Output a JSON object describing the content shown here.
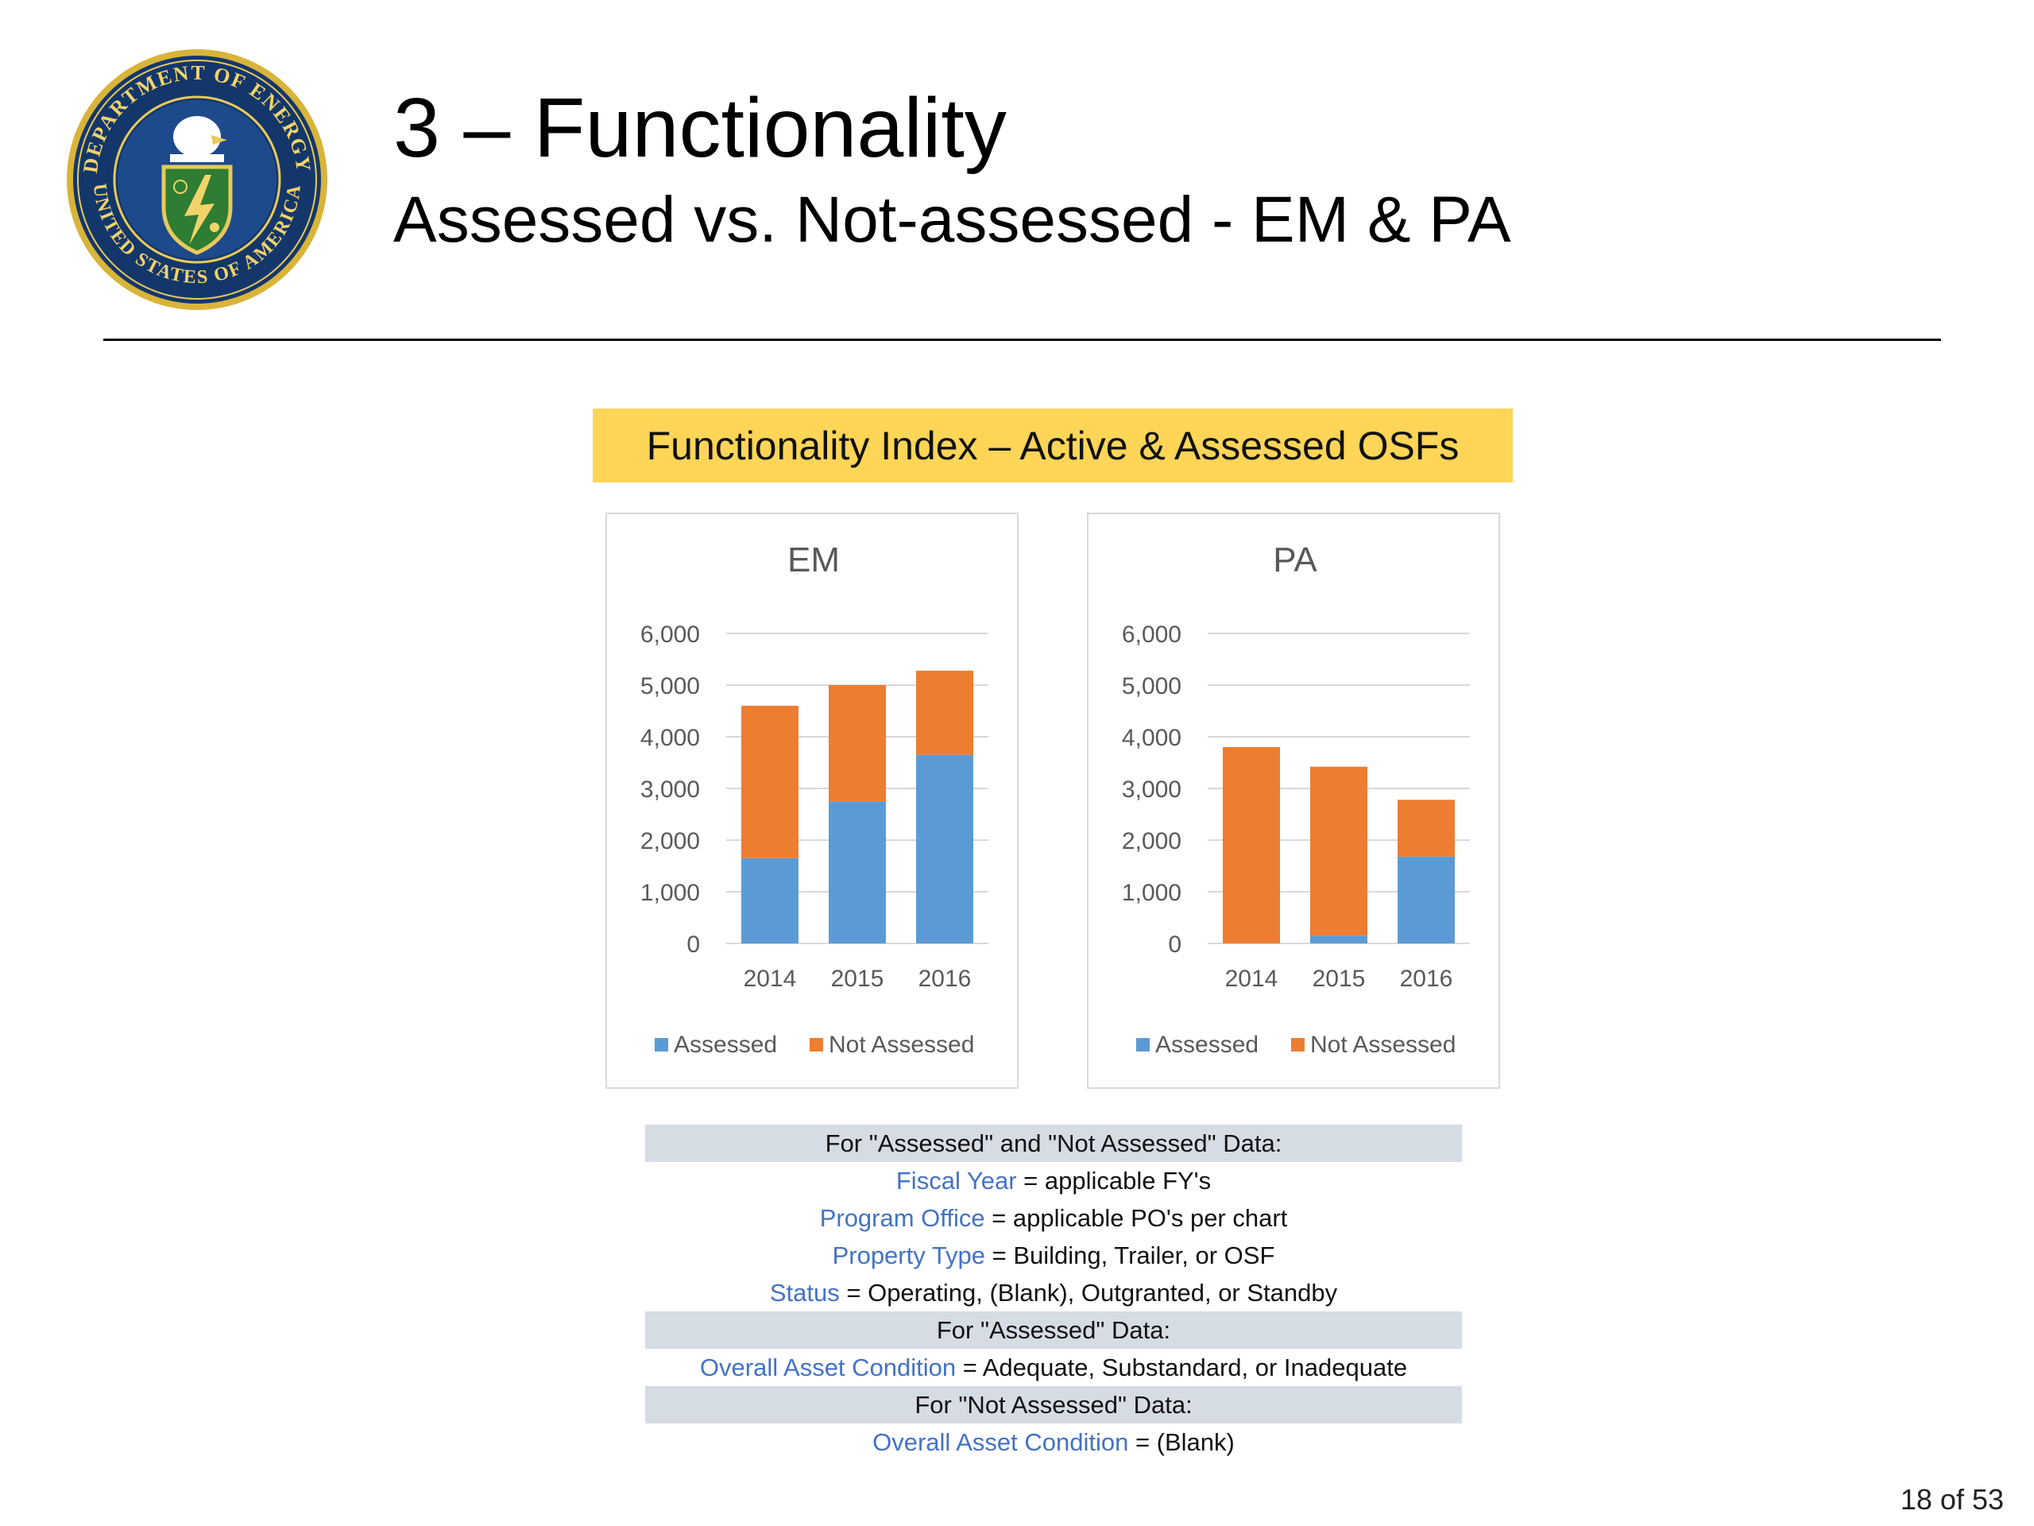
{
  "header": {
    "title": "3 – Functionality",
    "subtitle": "Assessed vs. Not-assessed - EM & PA"
  },
  "seal": {
    "name": "Department of Energy seal",
    "text_top": "DEPARTMENT OF ENERGY",
    "text_bottom": "UNITED STATES OF AMERICA"
  },
  "banner": {
    "label": "Functionality Index – Active & Assessed OSFs"
  },
  "colors": {
    "assessed": "#5b9bd5",
    "not_assessed": "#ed7d31",
    "banner": "#ffd557",
    "key_text": "#4472c4",
    "header_row": "#d6dce4"
  },
  "chart_data": [
    {
      "type": "bar",
      "stacked": true,
      "title": "EM",
      "categories": [
        "2014",
        "2015",
        "2016"
      ],
      "series": [
        {
          "name": "Assessed",
          "values": [
            1650,
            2750,
            3650
          ]
        },
        {
          "name": "Not Assessed",
          "values": [
            2950,
            2250,
            1630
          ]
        }
      ],
      "ylim": [
        0,
        6000
      ],
      "yticks": [
        0,
        1000,
        2000,
        3000,
        4000,
        5000,
        6000
      ],
      "ytick_labels": [
        "0",
        "1,000",
        "2,000",
        "3,000",
        "4,000",
        "5,000",
        "6,000"
      ],
      "grid": true,
      "legend": "bottom"
    },
    {
      "type": "bar",
      "stacked": true,
      "title": "PA",
      "categories": [
        "2014",
        "2015",
        "2016"
      ],
      "series": [
        {
          "name": "Assessed",
          "values": [
            0,
            150,
            1680
          ]
        },
        {
          "name": "Not Assessed",
          "values": [
            3800,
            3270,
            1100
          ]
        }
      ],
      "ylim": [
        0,
        6000
      ],
      "yticks": [
        0,
        1000,
        2000,
        3000,
        4000,
        5000,
        6000
      ],
      "ytick_labels": [
        "0",
        "1,000",
        "2,000",
        "3,000",
        "4,000",
        "5,000",
        "6,000"
      ],
      "grid": true,
      "legend": "bottom"
    }
  ],
  "criteria": {
    "section1_header": "For \"Assessed\" and \"Not Assessed\" Data:",
    "rows1": [
      {
        "key": "Fiscal Year",
        "value": " = applicable FY's"
      },
      {
        "key": "Program Office",
        "value": " = applicable PO's per chart"
      },
      {
        "key": "Property Type",
        "value": " = Building, Trailer, or OSF"
      },
      {
        "key": "Status",
        "value": " = Operating, (Blank), Outgranted, or Standby"
      }
    ],
    "section2_header": "For \"Assessed\" Data:",
    "rows2": [
      {
        "key": "Overall Asset Condition",
        "value": " = Adequate, Substandard, or Inadequate"
      }
    ],
    "section3_header": "For \"Not Assessed\" Data:",
    "rows3": [
      {
        "key": "Overall Asset Condition",
        "value": " = (Blank)"
      }
    ]
  },
  "footer": {
    "page": "18 of 53"
  }
}
